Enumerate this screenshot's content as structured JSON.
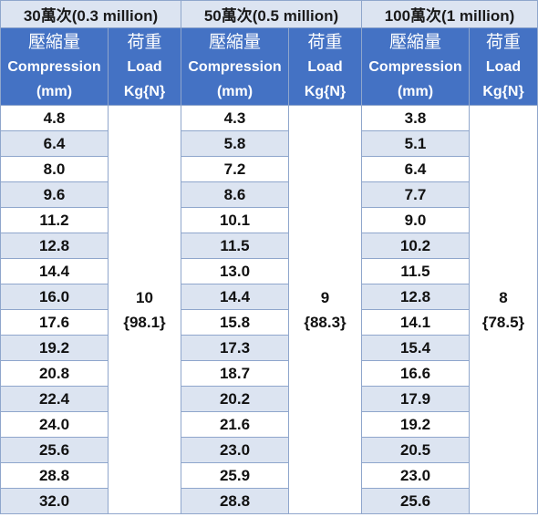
{
  "groups": [
    {
      "title": "30萬次(0.3 million)",
      "compression_header": [
        "壓縮量",
        "Compression",
        "(mm)"
      ],
      "load_header": [
        "荷重",
        "Load",
        "Kg{N}"
      ],
      "values": [
        "4.8",
        "6.4",
        "8.0",
        "9.6",
        "11.2",
        "12.8",
        "14.4",
        "16.0",
        "17.6",
        "19.2",
        "20.8",
        "22.4",
        "24.0",
        "25.6",
        "28.8",
        "32.0"
      ],
      "load": [
        "10",
        "{98.1}"
      ]
    },
    {
      "title": "50萬次(0.5 million)",
      "compression_header": [
        "壓縮量",
        "Compression",
        "(mm)"
      ],
      "load_header": [
        "荷重",
        "Load",
        "Kg{N}"
      ],
      "values": [
        "4.3",
        "5.8",
        "7.2",
        "8.6",
        "10.1",
        "11.5",
        "13.0",
        "14.4",
        "15.8",
        "17.3",
        "18.7",
        "20.2",
        "21.6",
        "23.0",
        "25.9",
        "28.8"
      ],
      "load": [
        "9",
        "{88.3}"
      ]
    },
    {
      "title": "100萬次(1 million)",
      "compression_header": [
        "壓縮量",
        "Compression",
        "(mm)"
      ],
      "load_header": [
        "荷重",
        "Load",
        "Kg{N}"
      ],
      "values": [
        "3.8",
        "5.1",
        "6.4",
        "7.7",
        "9.0",
        "10.2",
        "11.5",
        "12.8",
        "14.1",
        "15.4",
        "16.6",
        "17.9",
        "19.2",
        "20.5",
        "23.0",
        "25.6"
      ],
      "load": [
        "8",
        "{78.5}"
      ]
    }
  ],
  "colors": {
    "header_blue": "#4472c4",
    "stripe": "#dce4f1",
    "border": "#8fa6cc"
  }
}
